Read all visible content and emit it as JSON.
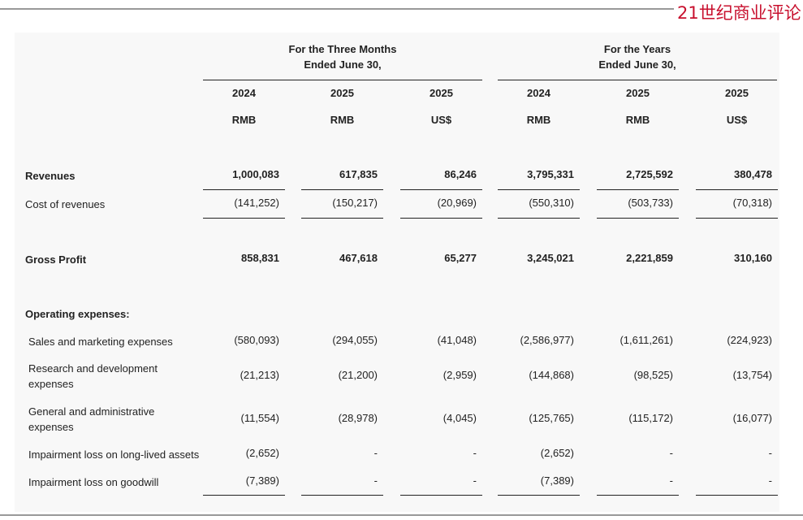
{
  "logo": "21世纪商业评论",
  "table": {
    "column_groups": [
      {
        "lines": [
          "For the Three Months",
          "Ended June 30,"
        ]
      },
      {
        "lines": [
          "For the Years",
          "Ended June 30,"
        ]
      }
    ],
    "years": [
      "2024",
      "2025",
      "2025",
      "2024",
      "2025",
      "2025"
    ],
    "currencies": [
      "RMB",
      "RMB",
      "US$",
      "RMB",
      "RMB",
      "US$"
    ],
    "rows": [
      {
        "label": "Revenues",
        "bold": true,
        "values": [
          "1,000,083",
          "617,835",
          "86,246",
          "3,795,331",
          "2,725,592",
          "380,478"
        ]
      },
      {
        "label": "Cost of revenues",
        "bold": false,
        "values": [
          "(141,252)",
          "(150,217)",
          "(20,969)",
          "(550,310)",
          "(503,733)",
          "(70,318)"
        ]
      },
      {
        "label": "Gross Profit",
        "bold": true,
        "values": [
          "858,831",
          "467,618",
          "65,277",
          "3,245,021",
          "2,221,859",
          "310,160"
        ]
      },
      {
        "label": "Operating expenses:",
        "bold": true,
        "values": []
      },
      {
        "label": "Sales and marketing expenses",
        "bold": false,
        "values": [
          "(580,093)",
          "(294,055)",
          "(41,048)",
          "(2,586,977)",
          "(1,611,261)",
          "(224,923)"
        ]
      },
      {
        "label": "Research and development expenses",
        "bold": false,
        "values": [
          "(21,213)",
          "(21,200)",
          "(2,959)",
          "(144,868)",
          "(98,525)",
          "(13,754)"
        ]
      },
      {
        "label": "General and administrative expenses",
        "bold": false,
        "values": [
          "(11,554)",
          "(28,978)",
          "(4,045)",
          "(125,765)",
          "(115,172)",
          "(16,077)"
        ]
      },
      {
        "label": "Impairment loss on long-lived assets",
        "bold": false,
        "values": [
          "(2,652)",
          "-",
          "-",
          "(2,652)",
          "-",
          "-"
        ]
      },
      {
        "label": "Impairment loss on goodwill",
        "bold": false,
        "values": [
          "(7,389)",
          "-",
          "-",
          "(7,389)",
          "-",
          "-"
        ]
      }
    ]
  }
}
